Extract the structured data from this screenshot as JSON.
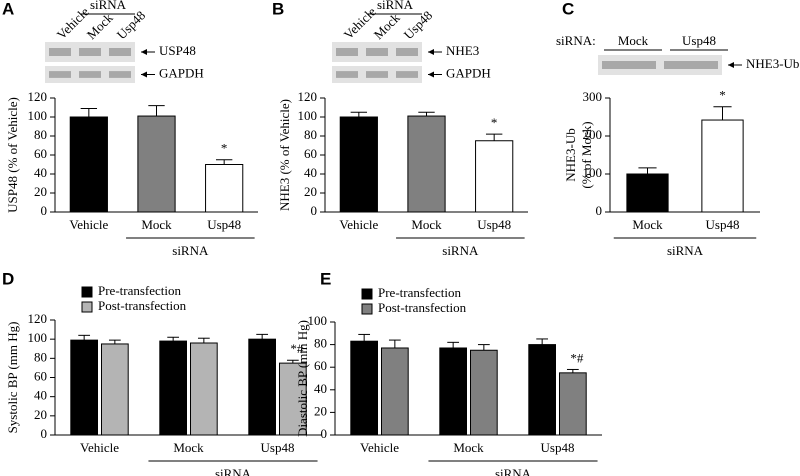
{
  "chart_data": [
    {
      "type": "bar",
      "panel": "A",
      "y_label": [
        "USP48 (% of Vehicle)"
      ],
      "categories": [
        "Vehicle",
        "Mock",
        "Usp48"
      ],
      "group_label": "siRNA",
      "values": [
        100,
        101,
        50
      ],
      "errors": [
        9,
        11,
        5
      ],
      "value_annotations": [
        null,
        null,
        "*"
      ],
      "colors": [
        "#000000",
        "#808080",
        "#ffffff"
      ],
      "ylim": [
        0,
        120
      ],
      "yticks": [
        0,
        20,
        40,
        60,
        80,
        100,
        120
      ],
      "blot": {
        "header": "siRNA",
        "lanes": [
          "Vehicle",
          "Mock",
          "Usp48"
        ],
        "bands": [
          "USP48",
          "GAPDH"
        ]
      }
    },
    {
      "type": "bar",
      "panel": "B",
      "y_label": [
        "NHE3 (% of Vehicle)"
      ],
      "categories": [
        "Vehicle",
        "Mock",
        "Usp48"
      ],
      "group_label": "siRNA",
      "values": [
        100,
        101,
        75
      ],
      "errors": [
        5,
        4,
        7
      ],
      "value_annotations": [
        null,
        null,
        "*"
      ],
      "colors": [
        "#000000",
        "#808080",
        "#ffffff"
      ],
      "ylim": [
        0,
        120
      ],
      "yticks": [
        0,
        20,
        40,
        60,
        80,
        100,
        120
      ],
      "blot": {
        "header": "siRNA",
        "lanes": [
          "Vehicle",
          "Mock",
          "Usp48"
        ],
        "bands": [
          "NHE3",
          "GAPDH"
        ]
      }
    },
    {
      "type": "bar",
      "panel": "C",
      "y_label": [
        "NHE3-Ub",
        "(% of Mock)"
      ],
      "categories": [
        "Mock",
        "Usp48"
      ],
      "group_label": "siRNA",
      "values": [
        100,
        242
      ],
      "errors": [
        16,
        35
      ],
      "value_annotations": [
        null,
        "*"
      ],
      "colors": [
        "#000000",
        "#ffffff"
      ],
      "ylim": [
        0,
        300
      ],
      "yticks": [
        0,
        100,
        200,
        300
      ],
      "blot": {
        "header": "siRNA:",
        "lanes": [
          "Mock",
          "Usp48"
        ],
        "bands": [
          "NHE3-Ub"
        ]
      }
    },
    {
      "type": "grouped_bar",
      "panel": "D",
      "y_label": [
        "Systolic BP (mm Hg)"
      ],
      "categories": [
        "Vehicle",
        "Mock",
        "Usp48"
      ],
      "group_label": "siRNA",
      "series": [
        {
          "name": "Pre-transfection",
          "color": "#000000",
          "values": [
            99,
            98,
            100
          ],
          "errors": [
            5,
            4,
            5
          ],
          "annotations": [
            null,
            null,
            null
          ]
        },
        {
          "name": "Post-transfection",
          "color": "#b4b4b4",
          "values": [
            95,
            96,
            75
          ],
          "errors": [
            4,
            5,
            3
          ],
          "annotations": [
            null,
            null,
            "*#"
          ]
        }
      ],
      "ylim": [
        0,
        120
      ],
      "yticks": [
        0,
        20,
        40,
        60,
        80,
        100,
        120
      ]
    },
    {
      "type": "grouped_bar",
      "panel": "E",
      "y_label": [
        "Diastolic BP (mm Hg)"
      ],
      "categories": [
        "Vehicle",
        "Mock",
        "Usp48"
      ],
      "group_label": "siRNA",
      "series": [
        {
          "name": "Pre-transfection",
          "color": "#000000",
          "values": [
            83,
            77,
            80
          ],
          "errors": [
            6,
            5,
            5
          ],
          "annotations": [
            null,
            null,
            null
          ]
        },
        {
          "name": "Post-transfection",
          "color": "#808080",
          "values": [
            77,
            75,
            55
          ],
          "errors": [
            7,
            5,
            3
          ],
          "annotations": [
            null,
            null,
            "*#"
          ]
        }
      ],
      "ylim": [
        0,
        100
      ],
      "yticks": [
        0,
        20,
        40,
        60,
        80,
        100
      ]
    }
  ]
}
